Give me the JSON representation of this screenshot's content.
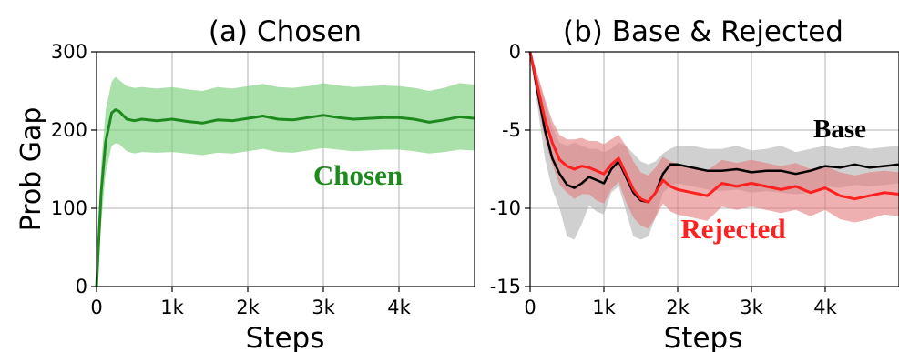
{
  "figure": {
    "shared_xlabel": "Steps"
  },
  "chart_data": [
    {
      "type": "line",
      "title": "(a) Chosen",
      "xlabel": "Steps",
      "ylabel": "Prob Gap",
      "xlim": [
        0,
        5000
      ],
      "ylim": [
        0,
        300
      ],
      "grid": true,
      "x_ticks": [
        0,
        1000,
        2000,
        3000,
        4000
      ],
      "x_tick_labels": [
        "0",
        "1k",
        "2k",
        "3k",
        "4k"
      ],
      "y_ticks": [
        0,
        100,
        200,
        300
      ],
      "y_tick_labels": [
        "0",
        "100",
        "200",
        "300"
      ],
      "series": [
        {
          "name": "Chosen",
          "color": "#1e8a1e",
          "band_color": "#7dcf7d",
          "x": [
            0,
            60,
            120,
            200,
            250,
            300,
            400,
            500,
            600,
            800,
            1000,
            1200,
            1400,
            1600,
            1800,
            2000,
            2200,
            2400,
            2600,
            2800,
            3000,
            3200,
            3400,
            3600,
            3800,
            4000,
            4200,
            4400,
            4600,
            4800,
            5000
          ],
          "mean": [
            0,
            120,
            185,
            222,
            226,
            224,
            214,
            212,
            214,
            212,
            214,
            211,
            209,
            213,
            212,
            215,
            218,
            214,
            213,
            216,
            219,
            216,
            214,
            215,
            216,
            216,
            214,
            210,
            213,
            217,
            215
          ],
          "upper": [
            0,
            155,
            225,
            262,
            268,
            264,
            256,
            254,
            255,
            253,
            255,
            252,
            250,
            255,
            253,
            256,
            259,
            255,
            254,
            256,
            260,
            257,
            255,
            256,
            257,
            256,
            254,
            250,
            254,
            260,
            258
          ],
          "lower": [
            0,
            80,
            145,
            180,
            183,
            182,
            173,
            170,
            172,
            171,
            172,
            170,
            168,
            171,
            170,
            173,
            176,
            172,
            171,
            174,
            177,
            175,
            173,
            174,
            175,
            175,
            173,
            170,
            172,
            175,
            174
          ]
        }
      ],
      "annotations": [
        {
          "text": "Chosen",
          "color": "#1e8a1e"
        }
      ]
    },
    {
      "type": "line",
      "title": "(b) Base & Rejected",
      "xlabel": "Steps",
      "ylabel": "",
      "xlim": [
        0,
        5000
      ],
      "ylim": [
        -15,
        0
      ],
      "grid": true,
      "x_ticks": [
        0,
        1000,
        2000,
        3000,
        4000
      ],
      "x_tick_labels": [
        "0",
        "1k",
        "2k",
        "3k",
        "4k"
      ],
      "y_ticks": [
        0,
        -5,
        -10,
        -15
      ],
      "y_tick_labels": [
        "0",
        "-5",
        "-10",
        "-15"
      ],
      "series": [
        {
          "name": "Base",
          "color": "#000000",
          "band_color": "#b0b0b0",
          "x": [
            0,
            100,
            200,
            300,
            400,
            500,
            600,
            700,
            800,
            900,
            1000,
            1100,
            1200,
            1300,
            1400,
            1500,
            1600,
            1700,
            1800,
            1900,
            2000,
            2200,
            2400,
            2600,
            2800,
            3000,
            3200,
            3400,
            3600,
            3800,
            4000,
            4200,
            4400,
            4600,
            4800,
            5000
          ],
          "mean": [
            0,
            -2.5,
            -5.0,
            -6.8,
            -7.8,
            -8.5,
            -8.7,
            -8.4,
            -8.0,
            -8.2,
            -8.4,
            -7.5,
            -7.0,
            -8.0,
            -9.0,
            -9.5,
            -9.6,
            -9.0,
            -7.8,
            -7.2,
            -7.2,
            -7.4,
            -7.6,
            -7.6,
            -7.5,
            -7.7,
            -7.6,
            -7.6,
            -7.8,
            -7.6,
            -7.3,
            -7.4,
            -7.2,
            -7.4,
            -7.3,
            -7.2
          ],
          "upper": [
            0,
            -1.5,
            -3.2,
            -4.8,
            -5.8,
            -6.0,
            -5.8,
            -6.0,
            -6.2,
            -6.2,
            -6.4,
            -6.2,
            -5.8,
            -6.0,
            -6.5,
            -7.0,
            -7.2,
            -7.0,
            -6.5,
            -6.2,
            -6.0,
            -6.0,
            -6.2,
            -6.2,
            -6.0,
            -6.3,
            -6.2,
            -6.0,
            -6.4,
            -6.2,
            -6.0,
            -6.2,
            -6.0,
            -6.2,
            -6.1,
            -6.0
          ],
          "lower": [
            0,
            -3.5,
            -6.8,
            -8.8,
            -10.0,
            -11.8,
            -12.0,
            -11.0,
            -9.8,
            -10.2,
            -10.4,
            -9.0,
            -8.6,
            -10.2,
            -11.8,
            -12.0,
            -11.8,
            -10.6,
            -9.0,
            -8.6,
            -8.4,
            -8.6,
            -8.8,
            -8.9,
            -8.8,
            -9.0,
            -8.9,
            -9.0,
            -9.1,
            -9.0,
            -8.6,
            -8.7,
            -8.5,
            -8.6,
            -8.5,
            -8.4
          ]
        },
        {
          "name": "Rejected",
          "color": "#ff2020",
          "band_color": "#e37b7b",
          "x": [
            0,
            100,
            200,
            300,
            400,
            500,
            600,
            700,
            800,
            900,
            1000,
            1100,
            1200,
            1300,
            1400,
            1500,
            1600,
            1700,
            1800,
            1900,
            2000,
            2200,
            2400,
            2600,
            2800,
            3000,
            3200,
            3400,
            3600,
            3800,
            4000,
            4200,
            4400,
            4600,
            4800,
            5000
          ],
          "mean": [
            0,
            -2.2,
            -4.3,
            -5.8,
            -6.9,
            -7.3,
            -7.5,
            -7.3,
            -7.4,
            -7.6,
            -7.8,
            -7.2,
            -6.8,
            -7.8,
            -8.8,
            -9.4,
            -9.6,
            -9.0,
            -8.2,
            -8.6,
            -8.8,
            -9.0,
            -9.2,
            -8.4,
            -8.6,
            -8.4,
            -8.6,
            -8.8,
            -8.6,
            -9.0,
            -8.7,
            -9.2,
            -9.4,
            -9.2,
            -9.0,
            -9.1
          ],
          "upper": [
            0,
            -1.4,
            -3.0,
            -4.4,
            -5.3,
            -5.6,
            -5.6,
            -5.5,
            -5.7,
            -5.7,
            -5.9,
            -5.6,
            -5.3,
            -6.0,
            -7.0,
            -7.7,
            -7.9,
            -7.4,
            -6.7,
            -7.0,
            -7.2,
            -7.4,
            -7.6,
            -6.9,
            -7.1,
            -6.9,
            -7.1,
            -7.3,
            -7.1,
            -7.5,
            -7.3,
            -7.7,
            -7.9,
            -7.7,
            -7.6,
            -7.7
          ],
          "lower": [
            0,
            -3.0,
            -5.6,
            -7.2,
            -8.5,
            -9.0,
            -9.4,
            -9.1,
            -9.1,
            -9.5,
            -9.7,
            -8.8,
            -8.3,
            -9.6,
            -10.6,
            -11.1,
            -11.3,
            -10.6,
            -9.7,
            -10.2,
            -10.4,
            -10.6,
            -10.8,
            -9.9,
            -10.1,
            -9.9,
            -10.1,
            -10.3,
            -10.1,
            -10.5,
            -10.1,
            -10.7,
            -10.9,
            -10.7,
            -10.4,
            -10.5
          ]
        }
      ],
      "annotations": [
        {
          "text": "Base",
          "color": "#000000"
        },
        {
          "text": "Rejected",
          "color": "#ff2020"
        }
      ]
    }
  ]
}
